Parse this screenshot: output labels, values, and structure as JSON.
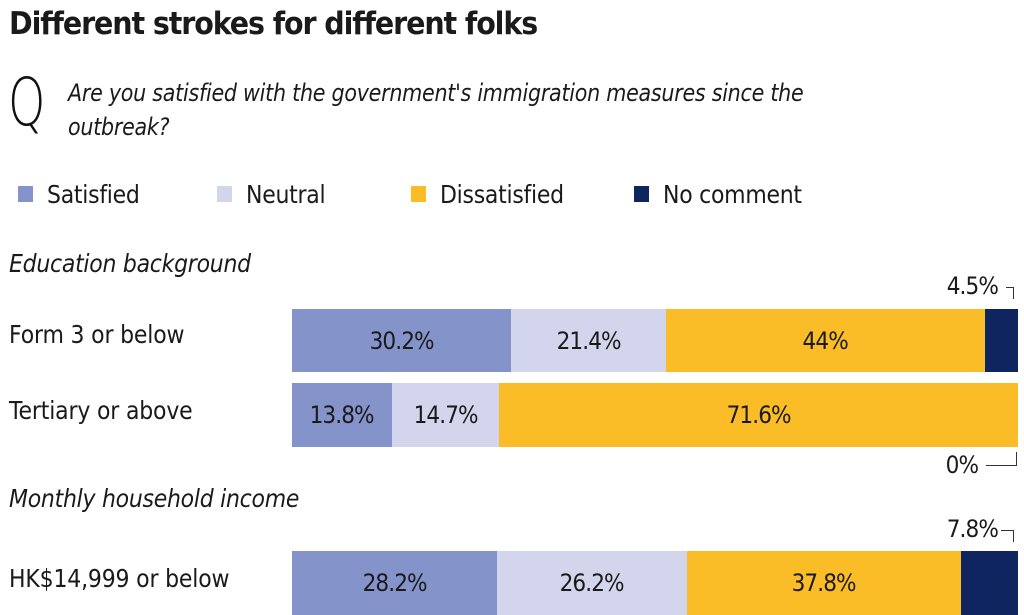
{
  "header": {
    "title": "Different strokes for different folks",
    "question_marker": "Q",
    "question": "Are you satisfied with the government's immigration measures since the outbreak?"
  },
  "legend": [
    {
      "label": "Satisfied",
      "color": "#8494ca",
      "icon": "square-swatch"
    },
    {
      "label": "Neutral",
      "color": "#d3d5ec",
      "icon": "square-swatch"
    },
    {
      "label": "Dissatisfied",
      "color": "#fbbd27",
      "icon": "square-swatch"
    },
    {
      "label": "No comment",
      "color": "#0f2560",
      "icon": "square-swatch"
    }
  ],
  "chart_data": {
    "type": "bar",
    "orientation": "horizontal",
    "stacked": true,
    "title": "Different strokes for different folks",
    "subtitle": "Are you satisfied with the government's immigration measures since the outbreak?",
    "unit": "%",
    "xlim": [
      0,
      100
    ],
    "legend_position": "top-left",
    "series_names": [
      "Satisfied",
      "Neutral",
      "Dissatisfied",
      "No comment"
    ],
    "series_colors": [
      "#8494ca",
      "#d3d5ec",
      "#fbbd27",
      "#0f2560"
    ],
    "groups": [
      {
        "title": "Education background",
        "rows": [
          {
            "label": "Form 3 or below",
            "values": [
              30.2,
              21.4,
              44,
              4.5
            ],
            "labels": [
              "30.2%",
              "21.4%",
              "44%",
              "4.5%"
            ],
            "callout": {
              "text": "4.5%",
              "position": "above"
            }
          },
          {
            "label": "Tertiary or above",
            "values": [
              13.8,
              14.7,
              71.6,
              0
            ],
            "labels": [
              "13.8%",
              "14.7%",
              "71.6%",
              "0%"
            ],
            "callout": {
              "text": "0%",
              "position": "below"
            }
          }
        ]
      },
      {
        "title": "Monthly household income",
        "rows": [
          {
            "label": "HK$14,999 or below",
            "values": [
              28.2,
              26.2,
              37.8,
              7.8
            ],
            "labels": [
              "28.2%",
              "26.2%",
              "37.8%",
              "7.8%"
            ],
            "callout": {
              "text": "7.8%",
              "position": "above"
            }
          }
        ]
      }
    ]
  }
}
